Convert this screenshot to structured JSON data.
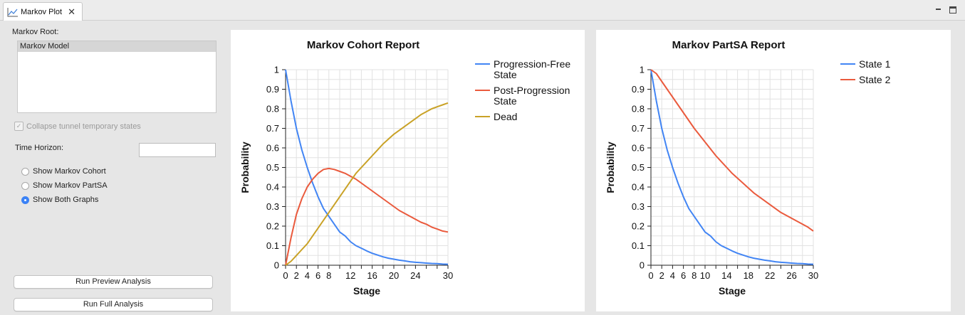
{
  "tab": {
    "title": "Markov Plot",
    "icon": "line-chart-icon",
    "close": "✕"
  },
  "left": {
    "root_label": "Markov Root:",
    "root_items": [
      "Markov Model"
    ],
    "collapse_label": "Collapse tunnel temporary states",
    "collapse_checked": true,
    "time_horizon_label": "Time Horizon:",
    "time_horizon_value": "",
    "radios": [
      {
        "label": "Show Markov Cohort",
        "selected": false
      },
      {
        "label": "Show Markov PartSA",
        "selected": false
      },
      {
        "label": "Show Both Graphs",
        "selected": true
      }
    ],
    "run_preview": "Run Preview Analysis",
    "run_full": "Run Full Analysis"
  },
  "chart_data": [
    {
      "type": "line",
      "title": "Markov Cohort Report",
      "xlabel": "Stage",
      "ylabel": "Probability",
      "xlim": [
        0,
        30
      ],
      "ylim": [
        0,
        1
      ],
      "xticks": [
        0,
        2,
        4,
        6,
        8,
        12,
        16,
        20,
        24,
        30
      ],
      "yticks": [
        0,
        0.1,
        0.2,
        0.3,
        0.4,
        0.5,
        0.6,
        0.7,
        0.8,
        0.9,
        1
      ],
      "grid": true,
      "legend": "right",
      "series": [
        {
          "name": "Progression-Free State",
          "color": "#4285f4",
          "x": [
            0,
            1,
            2,
            3,
            4,
            5,
            6,
            7,
            8,
            9,
            10,
            11,
            12,
            13,
            14,
            15,
            16,
            17,
            18,
            19,
            20,
            21,
            22,
            23,
            24,
            25,
            26,
            27,
            28,
            29,
            30
          ],
          "y": [
            1,
            0.84,
            0.7,
            0.59,
            0.5,
            0.42,
            0.35,
            0.29,
            0.25,
            0.21,
            0.17,
            0.15,
            0.12,
            0.1,
            0.087,
            0.073,
            0.061,
            0.052,
            0.043,
            0.036,
            0.031,
            0.026,
            0.022,
            0.018,
            0.015,
            0.013,
            0.011,
            0.009,
            0.008,
            0.006,
            0.005
          ]
        },
        {
          "name": "Post-Progression State",
          "color": "#ea5a3d",
          "x": [
            0,
            1,
            2,
            3,
            4,
            5,
            6,
            7,
            8,
            9,
            10,
            11,
            12,
            13,
            14,
            15,
            16,
            17,
            18,
            19,
            20,
            21,
            22,
            23,
            24,
            25,
            26,
            27,
            28,
            29,
            30
          ],
          "y": [
            0,
            0.14,
            0.26,
            0.34,
            0.4,
            0.44,
            0.47,
            0.49,
            0.495,
            0.49,
            0.48,
            0.47,
            0.455,
            0.44,
            0.42,
            0.4,
            0.38,
            0.36,
            0.34,
            0.32,
            0.3,
            0.28,
            0.265,
            0.25,
            0.235,
            0.22,
            0.21,
            0.195,
            0.185,
            0.175,
            0.17
          ]
        },
        {
          "name": "Dead",
          "color": "#c9a227",
          "x": [
            0,
            1,
            2,
            3,
            4,
            5,
            6,
            7,
            8,
            9,
            10,
            11,
            12,
            13,
            14,
            15,
            16,
            17,
            18,
            19,
            20,
            21,
            22,
            23,
            24,
            25,
            26,
            27,
            28,
            29,
            30
          ],
          "y": [
            0,
            0.02,
            0.05,
            0.08,
            0.11,
            0.15,
            0.19,
            0.23,
            0.27,
            0.31,
            0.35,
            0.39,
            0.43,
            0.47,
            0.5,
            0.53,
            0.56,
            0.59,
            0.62,
            0.645,
            0.67,
            0.69,
            0.71,
            0.73,
            0.75,
            0.77,
            0.785,
            0.8,
            0.81,
            0.82,
            0.83
          ]
        }
      ]
    },
    {
      "type": "line",
      "title": "Markov PartSA Report",
      "xlabel": "Stage",
      "ylabel": "Probability",
      "xlim": [
        0,
        30
      ],
      "ylim": [
        0,
        1
      ],
      "xticks": [
        0,
        2,
        4,
        6,
        8,
        10,
        14,
        18,
        22,
        26,
        30
      ],
      "yticks": [
        0,
        0.1,
        0.2,
        0.3,
        0.4,
        0.5,
        0.6,
        0.7,
        0.8,
        0.9,
        1
      ],
      "grid": true,
      "legend": "right",
      "series": [
        {
          "name": "State 1",
          "color": "#4285f4",
          "x": [
            0,
            1,
            2,
            3,
            4,
            5,
            6,
            7,
            8,
            9,
            10,
            11,
            12,
            13,
            14,
            15,
            16,
            17,
            18,
            19,
            20,
            21,
            22,
            23,
            24,
            25,
            26,
            27,
            28,
            29,
            30
          ],
          "y": [
            1,
            0.84,
            0.7,
            0.59,
            0.5,
            0.42,
            0.35,
            0.29,
            0.25,
            0.21,
            0.17,
            0.15,
            0.12,
            0.1,
            0.087,
            0.073,
            0.061,
            0.052,
            0.043,
            0.036,
            0.031,
            0.026,
            0.022,
            0.018,
            0.015,
            0.013,
            0.011,
            0.009,
            0.008,
            0.006,
            0.005
          ]
        },
        {
          "name": "State 2",
          "color": "#ea5a3d",
          "x": [
            0,
            1,
            2,
            3,
            4,
            5,
            6,
            7,
            8,
            9,
            10,
            11,
            12,
            13,
            14,
            15,
            16,
            17,
            18,
            19,
            20,
            21,
            22,
            23,
            24,
            25,
            26,
            27,
            28,
            29,
            30
          ],
          "y": [
            1,
            0.98,
            0.94,
            0.9,
            0.86,
            0.82,
            0.78,
            0.74,
            0.7,
            0.665,
            0.63,
            0.595,
            0.56,
            0.53,
            0.5,
            0.47,
            0.445,
            0.42,
            0.395,
            0.37,
            0.35,
            0.33,
            0.31,
            0.29,
            0.27,
            0.255,
            0.24,
            0.225,
            0.21,
            0.195,
            0.175
          ]
        }
      ]
    }
  ]
}
